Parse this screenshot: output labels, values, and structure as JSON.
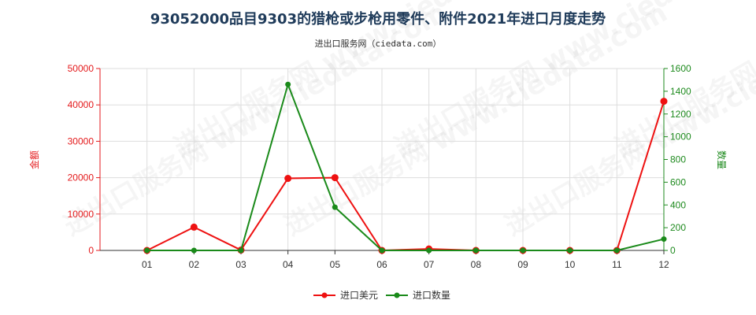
{
  "title": "93052000品目9303的猎枪或步枪用零件、附件2021年进口月度走势",
  "subtitle": "进出口服务网（ciedata.com）",
  "watermark": "进出口服务网 www.ciedata.com",
  "chart_data": {
    "type": "line",
    "categories": [
      "01",
      "02",
      "03",
      "04",
      "05",
      "06",
      "07",
      "08",
      "09",
      "10",
      "11",
      "12"
    ],
    "y_left": {
      "label": "金额",
      "ticks": [
        0,
        10000,
        20000,
        30000,
        40000,
        50000
      ],
      "ylim": [
        0,
        50000
      ],
      "color": "#e41a1c"
    },
    "y_right": {
      "label": "数量",
      "ticks": [
        0,
        200,
        400,
        600,
        800,
        1000,
        1200,
        1400,
        1600
      ],
      "ylim": [
        0,
        1600
      ],
      "color": "#1e8a1e"
    },
    "series": [
      {
        "name": "进口美元",
        "axis": "left",
        "color": "#ee1111",
        "values": [
          0,
          6400,
          100,
          19800,
          20000,
          0,
          400,
          0,
          0,
          0,
          0,
          41000
        ]
      },
      {
        "name": "进口数量",
        "axis": "right",
        "color": "#1a8a1a",
        "values": [
          0,
          0,
          0,
          1460,
          380,
          0,
          0,
          0,
          0,
          0,
          0,
          100
        ]
      }
    ],
    "grid": true,
    "legend": "bottom-center"
  }
}
